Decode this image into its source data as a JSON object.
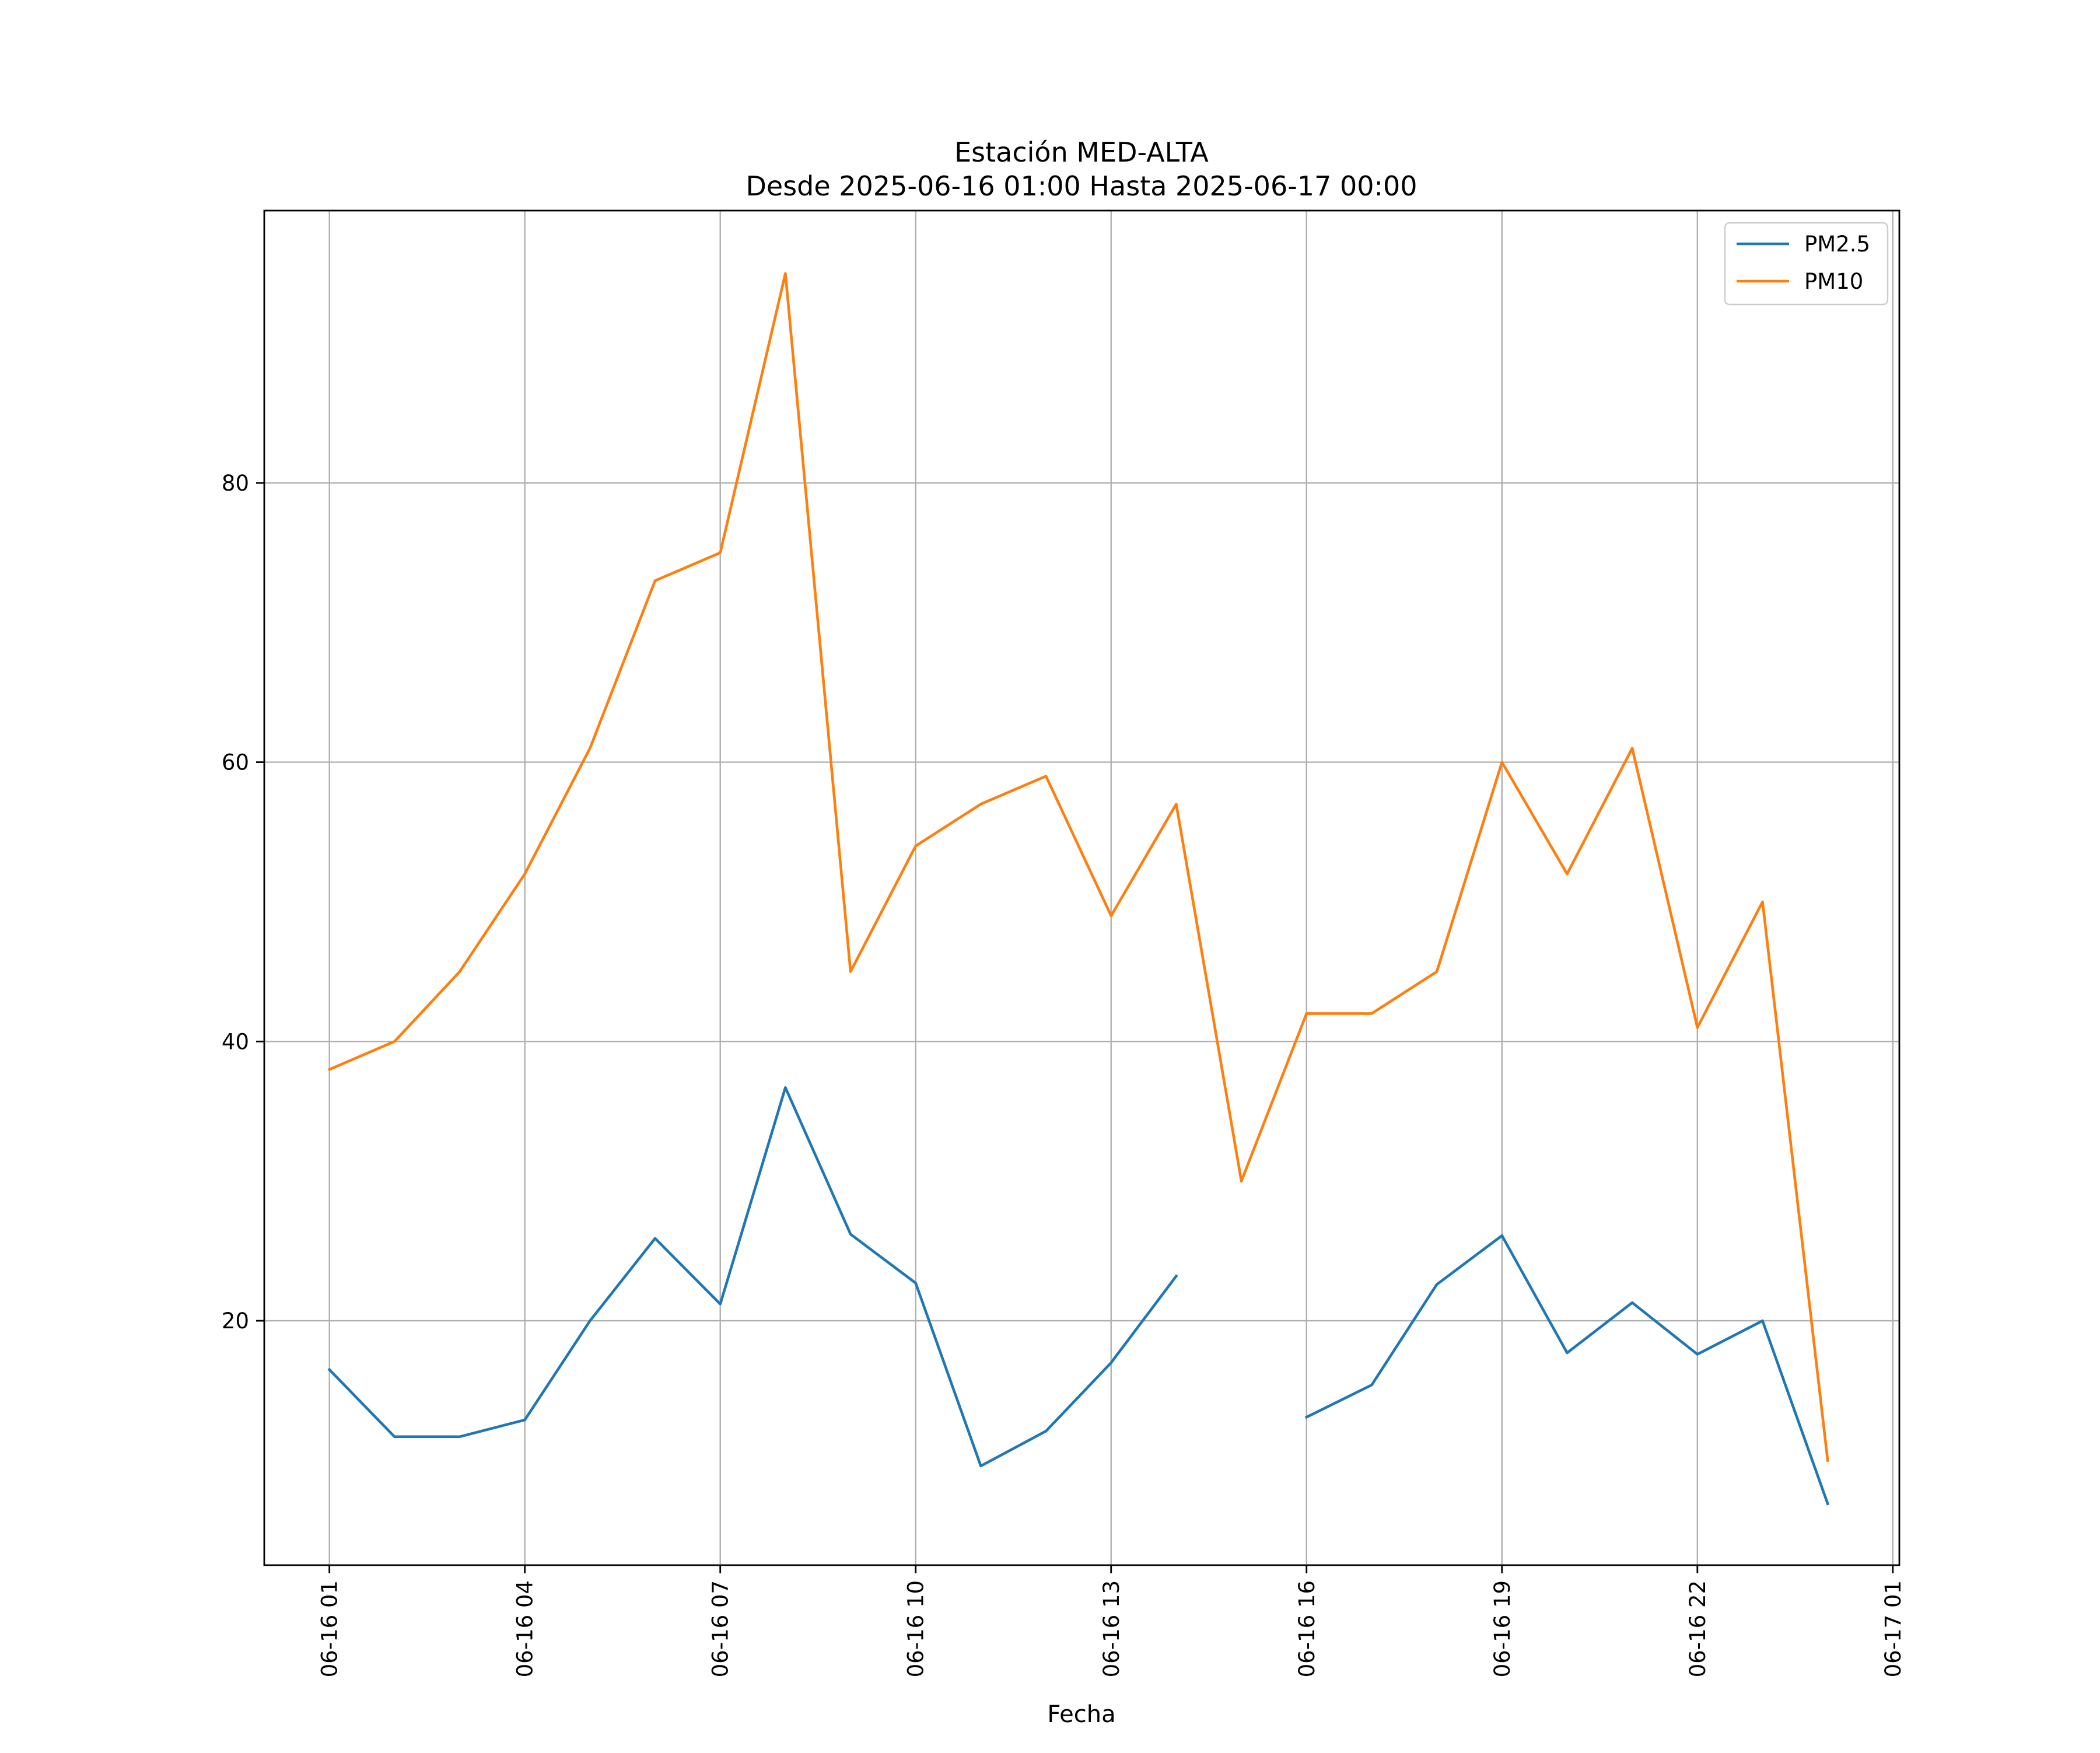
{
  "chart_data": {
    "type": "line",
    "title": "Estación MED-ALTA",
    "subtitle": "Desde 2025-06-16 01:00 Hasta 2025-06-17 00:00",
    "xlabel": "Fecha",
    "ylabel": "",
    "x": [
      "06-16 01",
      "06-16 02",
      "06-16 03",
      "06-16 04",
      "06-16 05",
      "06-16 06",
      "06-16 07",
      "06-16 08",
      "06-16 09",
      "06-16 10",
      "06-16 11",
      "06-16 12",
      "06-16 13",
      "06-16 14",
      "06-16 15",
      "06-16 16",
      "06-16 17",
      "06-16 18",
      "06-16 19",
      "06-16 20",
      "06-16 21",
      "06-16 22",
      "06-16 23",
      "06-17 00"
    ],
    "x_ticks": [
      "06-16 01",
      "06-16 04",
      "06-16 07",
      "06-16 10",
      "06-16 13",
      "06-16 16",
      "06-16 19",
      "06-16 22",
      "06-17 01"
    ],
    "y_ticks": [
      20,
      40,
      60,
      80
    ],
    "ylim": [
      2.5,
      99.5
    ],
    "xlim": [
      "06-16 00:00",
      "06-17 01:06"
    ],
    "grid": true,
    "legend_position": "top-right",
    "series": [
      {
        "name": "PM2.5",
        "color": "#1f77b4",
        "values": [
          16.5,
          11.7,
          11.7,
          12.9,
          20.0,
          25.9,
          21.2,
          36.7,
          26.2,
          22.7,
          9.6,
          12.1,
          17.0,
          23.2,
          null,
          13.1,
          15.4,
          22.6,
          26.1,
          17.7,
          21.3,
          17.6,
          20.0,
          6.9
        ]
      },
      {
        "name": "PM10",
        "color": "#ff7f0e",
        "values": [
          38,
          40,
          45,
          52,
          61,
          73,
          75,
          95,
          45,
          54,
          57,
          59,
          49,
          57,
          30,
          42,
          42,
          45,
          60,
          52,
          61,
          41,
          50,
          10
        ]
      }
    ]
  }
}
